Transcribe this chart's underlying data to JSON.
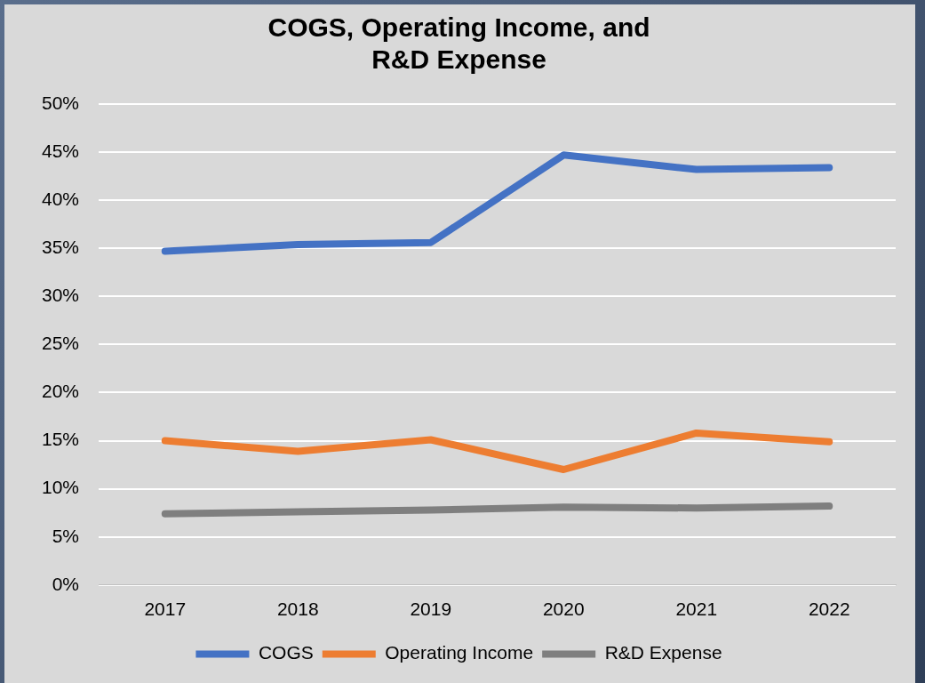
{
  "chart_data": {
    "type": "line",
    "title": "COGS, Operating Income, and R&D Expense",
    "categories": [
      "2017",
      "2018",
      "2019",
      "2020",
      "2021",
      "2022"
    ],
    "series": [
      {
        "name": "COGS",
        "color": "#4472c4",
        "values": [
          34.7,
          35.4,
          35.6,
          44.7,
          43.2,
          43.4
        ]
      },
      {
        "name": "Operating Income",
        "color": "#ed7d31",
        "values": [
          15.0,
          13.9,
          15.1,
          12.0,
          15.8,
          14.9
        ]
      },
      {
        "name": "R&D Expense",
        "color": "#7f7f7f",
        "values": [
          7.4,
          7.6,
          7.8,
          8.1,
          8.0,
          8.2
        ]
      }
    ],
    "ylim": [
      0,
      50
    ],
    "yticks": [
      {
        "value": 0,
        "label": "0%"
      },
      {
        "value": 5,
        "label": "5%"
      },
      {
        "value": 10,
        "label": "10%"
      },
      {
        "value": 15,
        "label": "15%"
      },
      {
        "value": 20,
        "label": "20%"
      },
      {
        "value": 25,
        "label": "25%"
      },
      {
        "value": 30,
        "label": "30%"
      },
      {
        "value": 35,
        "label": "35%"
      },
      {
        "value": 40,
        "label": "40%"
      },
      {
        "value": 45,
        "label": "45%"
      },
      {
        "value": 50,
        "label": "50%"
      }
    ],
    "grid": "y",
    "legend": "bottom",
    "marker": "none",
    "line_style": "solid"
  }
}
